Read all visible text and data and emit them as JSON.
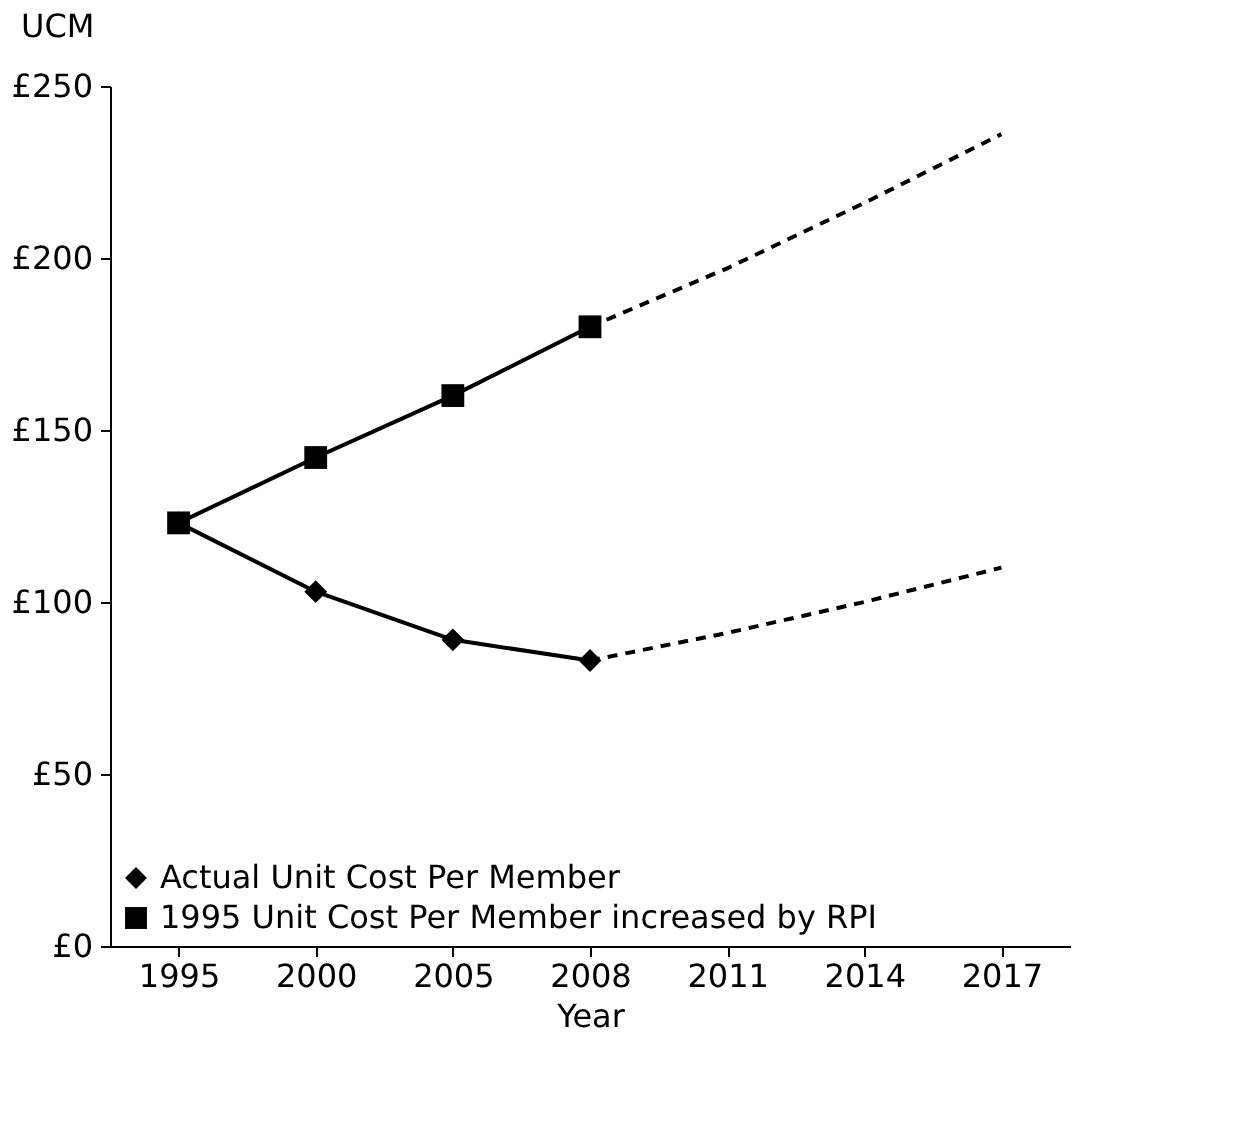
{
  "chart_data": {
    "type": "line",
    "xlabel": "Year",
    "ylabel": "UCM",
    "categories": [
      "1995",
      "2000",
      "2005",
      "2008",
      "2011",
      "2014",
      "2017"
    ],
    "series": [
      {
        "name": "Actual Unit Cost Per Member",
        "color": "#000000",
        "marker": "diamond",
        "line_style": "solid",
        "values": [
          123,
          103,
          89,
          83,
          null,
          null,
          null
        ]
      },
      {
        "name": "1995 Unit Cost Per Member increased by RPI",
        "color": "#000000",
        "marker": "square",
        "line_style": "solid",
        "values": [
          123,
          142,
          160,
          180,
          null,
          null,
          null
        ]
      },
      {
        "color": "#000000",
        "marker": "none",
        "line_style": "dashed",
        "values": [
          null,
          null,
          null,
          83,
          91,
          100,
          110
        ]
      },
      {
        "color": "#000000",
        "marker": "none",
        "line_style": "dashed",
        "values": [
          null,
          null,
          null,
          180,
          197,
          216,
          236
        ]
      }
    ],
    "ylim": [
      0,
      250
    ],
    "yticks": [
      {
        "value": 0,
        "label": "£0"
      },
      {
        "value": 50,
        "label": "£50"
      },
      {
        "value": 100,
        "label": "£100"
      },
      {
        "value": 150,
        "label": "£150"
      },
      {
        "value": 200,
        "label": "£200"
      },
      {
        "value": 250,
        "label": "£250"
      }
    ],
    "grid": false,
    "legend": "bottom left"
  }
}
